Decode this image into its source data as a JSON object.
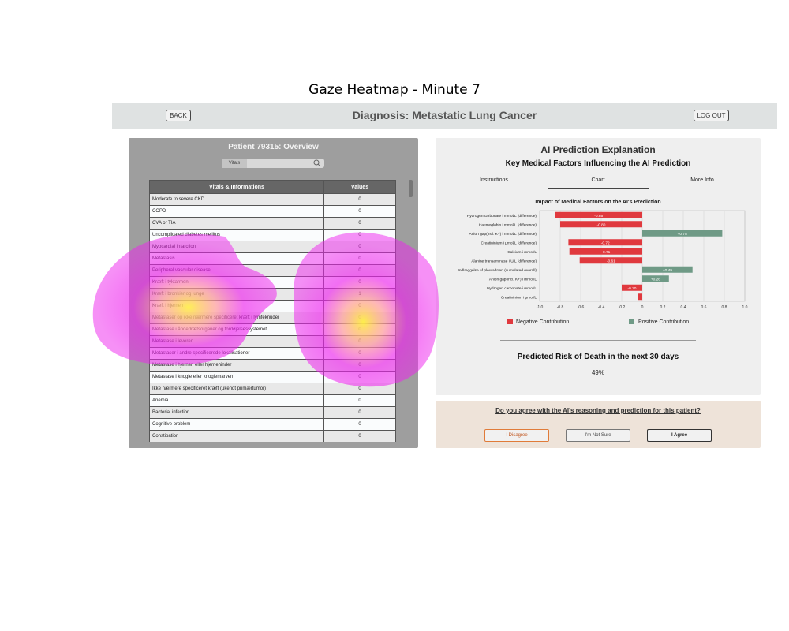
{
  "figure_title": "Gaze Heatmap - Minute 7",
  "header": {
    "back_label": "BACK",
    "title": "Diagnosis: Metastatic Lung Cancer",
    "logout_label": "LOG OUT"
  },
  "patient_panel": {
    "title": "Patient 79315: Overview",
    "search_tab_label": "Vitals",
    "search_value": "",
    "table": {
      "columns": [
        "Vitals & Informations",
        "Values"
      ],
      "rows": [
        [
          "Moderate to severe CKD",
          "0"
        ],
        [
          "COPD",
          "0"
        ],
        [
          "CVA or TIA",
          "0"
        ],
        [
          "Uncomplicated diabetes mellitus",
          "0"
        ],
        [
          "Myocardial infarction",
          "0"
        ],
        [
          "Metastasis",
          "0"
        ],
        [
          "Peripheral vascular disease",
          "0"
        ],
        [
          "Kræft i tyktarmen",
          "0"
        ],
        [
          "Kræft i bronkier og lunge",
          "1"
        ],
        [
          "Kræft i hjernen",
          "0"
        ],
        [
          "Metastaser og ikke nærmere specificeret kræft i lymfeknuder",
          "0"
        ],
        [
          "Metastase i åndedrætsorganer og fordøjelsessystemet",
          "0"
        ],
        [
          "Metastase i leveren",
          "0"
        ],
        [
          "Metastaser i andre specificerede lokalisationer",
          "0"
        ],
        [
          "Metastase i hjernen eller hjernehinder",
          "0"
        ],
        [
          "Metastase i knogle eller knoglemarven",
          "0"
        ],
        [
          "Ikke nærmere specificeret kræft (ukendt primærtumor)",
          "0"
        ],
        [
          "Anemia",
          "0"
        ],
        [
          "Bacterial infection",
          "0"
        ],
        [
          "Cognitive problem",
          "0"
        ],
        [
          "Constipation",
          "0"
        ]
      ]
    }
  },
  "ai_panel": {
    "title": "AI Prediction Explanation",
    "subtitle": "Key Medical Factors Influencing the AI Prediction",
    "tabs": [
      "Instructions",
      "Chart",
      "More Info"
    ],
    "active_tab": "Chart",
    "risk_label": "Predicted Risk of Death in the next 30 days",
    "risk_value": "49%"
  },
  "chart_data": {
    "type": "bar",
    "orientation": "horizontal",
    "title": "Impact of Medical Factors on the AI's Prediction",
    "categories": [
      "Hydrogen carbonate i mmol/L (difference)",
      "Haemoglobin i mmol/L (difference)",
      "Anion gap(incl. K+) i mmol/L (difference)",
      "Creatininium i μmol/L (difference)",
      "Calcium i mmol/L",
      "Alanine transaminase i U/L (difference)",
      "Indlæggelse af pleuradræn (cumulated overall)",
      "Anion gap(incl. K+) i mmol/L",
      "Hydrogen carbonate i mmol/L",
      "Creatininium i μmol/L"
    ],
    "values": [
      -0.85,
      -0.8,
      0.78,
      -0.72,
      -0.71,
      -0.61,
      0.49,
      0.26,
      -0.2,
      -0.04
    ],
    "data_labels": [
      "-0.85",
      "-0.80",
      "+0.78",
      "-0.72",
      "-0.71",
      "-0.61",
      "+0.49",
      "+0.26",
      "-0.20",
      ""
    ],
    "xlim": [
      -1.0,
      1.0
    ],
    "xticks": [
      "-1.0",
      "-0.8",
      "-0.6",
      "-0.4",
      "-0.2",
      "0",
      "0.2",
      "0.4",
      "0.6",
      "0.8",
      "1.0"
    ],
    "grid": true,
    "legend": [
      {
        "label": "Negative Contribution",
        "color": "#e0393e"
      },
      {
        "label": "Positive Contribution",
        "color": "#6f9a86"
      }
    ],
    "legend_position": "bottom"
  },
  "question": {
    "text": "Do you agree with the AI's reasoning and prediction for this patient?",
    "disagree_label": "I Disagree",
    "not_sure_label": "I'm Not Sure",
    "agree_label": "I Agree"
  },
  "colors": {
    "negative": "#e0393e",
    "positive": "#6f9a86",
    "heatmap_low": "#ee22ee",
    "heatmap_high": "#ffee44"
  }
}
